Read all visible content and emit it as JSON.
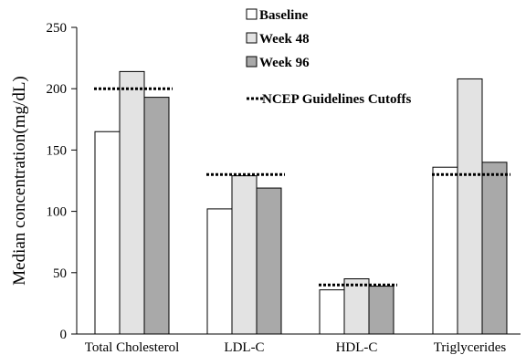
{
  "chart_data": {
    "type": "bar",
    "title": "",
    "xlabel": "",
    "ylabel": "Median concentration(mg/dL)",
    "ylim": [
      0,
      250
    ],
    "yticks": [
      0,
      50,
      100,
      150,
      200,
      250
    ],
    "categories": [
      "Total Cholesterol",
      "LDL-C",
      "HDL-C",
      "Triglycerides"
    ],
    "series": [
      {
        "name": "Baseline",
        "values": [
          165,
          102,
          36,
          136
        ],
        "color": "#ffffff"
      },
      {
        "name": "Week 48",
        "values": [
          214,
          129,
          45,
          208
        ],
        "color": "#e3e3e3"
      },
      {
        "name": "Week 96",
        "values": [
          193,
          119,
          39,
          140
        ],
        "color": "#a9a9a9"
      }
    ],
    "reference_lines": {
      "name": "NCEP Guidelines Cutoffs",
      "style": "dotted",
      "values": [
        200,
        130,
        40,
        130
      ]
    },
    "grid": false,
    "legend_position": "top-center"
  }
}
